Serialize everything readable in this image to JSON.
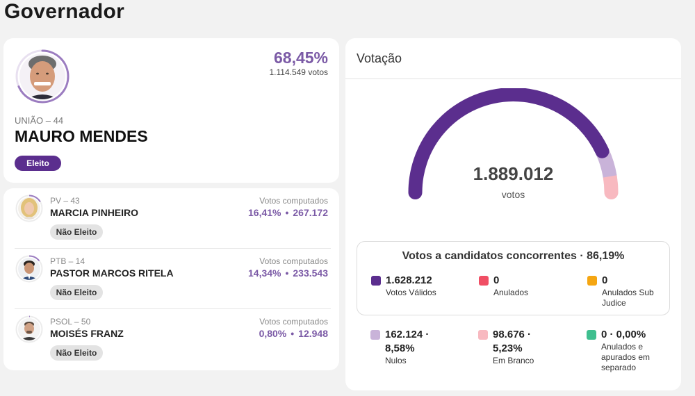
{
  "page": {
    "title": "Governador"
  },
  "winner": {
    "percent": "68,45%",
    "votes": "1.114.549 votos",
    "party": "UNIÃO – 44",
    "name": "MAURO MENDES",
    "status": "Eleito",
    "ring_fraction": 0.6845
  },
  "others": [
    {
      "party": "PV – 43",
      "name": "MARCIA PINHEIRO",
      "label": "Votos computados",
      "percent": "16,41%",
      "votes": "267.172",
      "status": "Não Eleito",
      "ring_fraction": 0.1641
    },
    {
      "party": "PTB – 14",
      "name": "PASTOR MARCOS RITELA",
      "label": "Votos computados",
      "percent": "14,34%",
      "votes": "233.543",
      "status": "Não Eleito",
      "ring_fraction": 0.1434
    },
    {
      "party": "PSOL – 50",
      "name": "MOISÉS FRANZ",
      "label": "Votos computados",
      "percent": "0,80%",
      "votes": "12.948",
      "status": "Não Eleito",
      "ring_fraction": 0.008
    }
  ],
  "separator_dot": "•",
  "votacao": {
    "title": "Votação",
    "total": "1.889.012",
    "unit": "votos",
    "gauge": {
      "valid_fraction": 0.8619,
      "null_fraction": 0.0858,
      "blank_fraction": 0.0523
    },
    "concurrent_title": "Votos a candidatos concorrentes · 86,19%",
    "stats_top": [
      {
        "value": "1.628.212",
        "label": "Votos Válidos",
        "color": "#5b2e8e"
      },
      {
        "value": "0",
        "label": "Anulados",
        "color": "#f04e64"
      },
      {
        "value": "0",
        "label": "Anulados Sub Judice",
        "color": "#f5a612"
      }
    ],
    "stats_bottom": [
      {
        "value": "162.124 · 8,58%",
        "label": "Nulos",
        "color": "#c9b3d9"
      },
      {
        "value": "98.676 · 5,23%",
        "label": "Em Branco",
        "color": "#f8b9c0"
      },
      {
        "value": "0 · 0,00%",
        "label": "Anulados e apurados em separado",
        "color": "#3fbf8f"
      }
    ]
  },
  "colors": {
    "accent": "#7b5aa6",
    "primary": "#5b2e8e",
    "ring": "#9b7cc0"
  }
}
